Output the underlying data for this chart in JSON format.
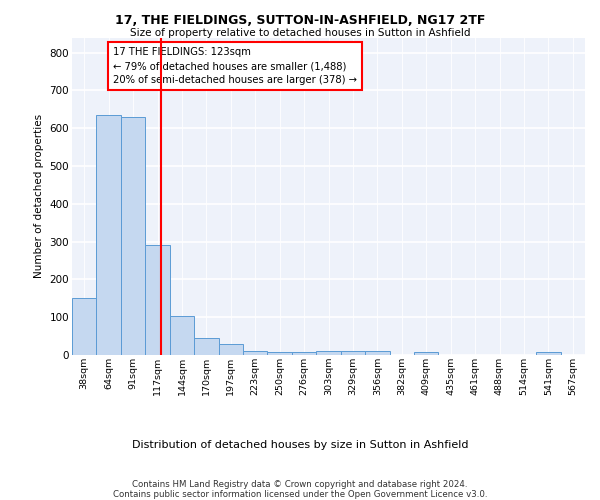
{
  "title1": "17, THE FIELDINGS, SUTTON-IN-ASHFIELD, NG17 2TF",
  "title2": "Size of property relative to detached houses in Sutton in Ashfield",
  "xlabel": "Distribution of detached houses by size in Sutton in Ashfield",
  "ylabel": "Number of detached properties",
  "footer": "Contains HM Land Registry data © Crown copyright and database right 2024.\nContains public sector information licensed under the Open Government Licence v3.0.",
  "categories": [
    "38sqm",
    "64sqm",
    "91sqm",
    "117sqm",
    "144sqm",
    "170sqm",
    "197sqm",
    "223sqm",
    "250sqm",
    "276sqm",
    "303sqm",
    "329sqm",
    "356sqm",
    "382sqm",
    "409sqm",
    "435sqm",
    "461sqm",
    "488sqm",
    "514sqm",
    "541sqm",
    "567sqm"
  ],
  "values": [
    150,
    635,
    630,
    290,
    103,
    45,
    30,
    10,
    8,
    8,
    10,
    10,
    10,
    0,
    8,
    0,
    0,
    0,
    0,
    8,
    0
  ],
  "bar_color": "#c5d8f0",
  "bar_edge_color": "#5b9bd5",
  "red_line_x": 3.15,
  "annotation_text": "17 THE FIELDINGS: 123sqm\n← 79% of detached houses are smaller (1,488)\n20% of semi-detached houses are larger (378) →",
  "ylim": [
    0,
    840
  ],
  "yticks": [
    0,
    100,
    200,
    300,
    400,
    500,
    600,
    700,
    800
  ],
  "bg_color": "#eef2fa"
}
